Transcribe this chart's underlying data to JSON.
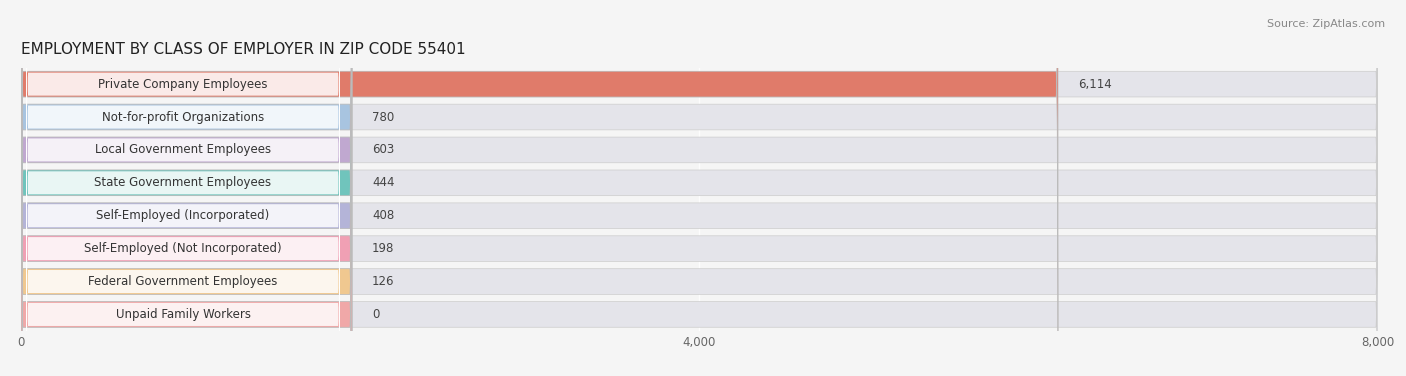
{
  "title": "EMPLOYMENT BY CLASS OF EMPLOYER IN ZIP CODE 55401",
  "source": "Source: ZipAtlas.com",
  "categories": [
    "Private Company Employees",
    "Not-for-profit Organizations",
    "Local Government Employees",
    "State Government Employees",
    "Self-Employed (Incorporated)",
    "Self-Employed (Not Incorporated)",
    "Federal Government Employees",
    "Unpaid Family Workers"
  ],
  "values": [
    6114,
    780,
    603,
    444,
    408,
    198,
    126,
    0
  ],
  "bar_colors": [
    "#e07b6a",
    "#a8c4e0",
    "#c0a8d0",
    "#70c4bc",
    "#b4b4d8",
    "#f0a0b4",
    "#f0c890",
    "#f0a8a8"
  ],
  "xlim": [
    0,
    8000
  ],
  "xticks": [
    0,
    4000,
    8000
  ],
  "background_color": "#f5f5f5",
  "bar_bg_color": "#e4e4ea",
  "bar_border_color": "#ccccdd",
  "title_fontsize": 11,
  "source_fontsize": 8,
  "label_fontsize": 8.5,
  "value_fontsize": 8.5
}
